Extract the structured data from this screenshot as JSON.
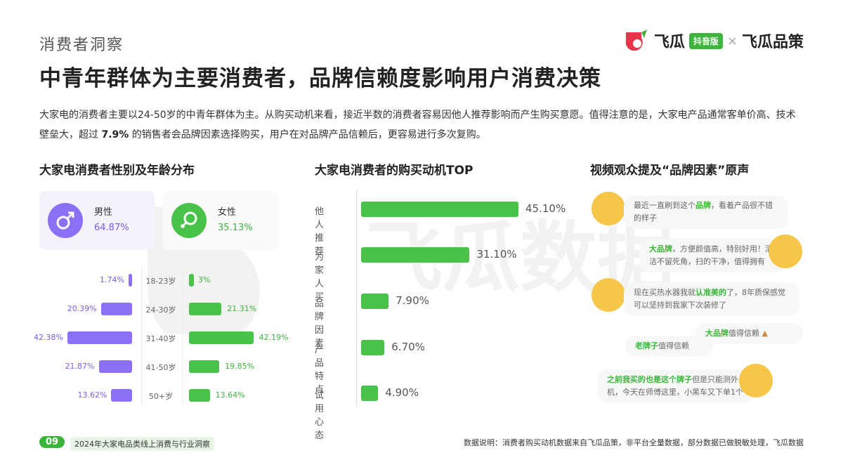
{
  "header": {
    "section_label": "消费者洞察",
    "title": "中青年群体为主要消费者，品牌信赖度影响用户消费决策",
    "brand_left": "飞瓜",
    "brand_tag": "抖音版",
    "brand_x": "×",
    "brand_right": "飞瓜品策"
  },
  "intro": {
    "part1": "大家电的消费者主要以24-50岁的中青年群体为主。从购买动机来看，接近半数的消费者容易因他人推荐影响而产生购买意愿。值得注意的是，大家电产品通常客单价高、技术壁垒大，超过 ",
    "highlight": "7.9%",
    "part2": " 的销售者会品牌因素选择购买，用户在对品牌产品信赖后，更容易进行多次复购。"
  },
  "section_titles": {
    "gender_age": "大家电消费者性别及年龄分布",
    "motivation": "大家电消费者的购买动机TOP",
    "voices": "视频观众提及“品牌因素”原声"
  },
  "gender": {
    "male_label": "男性",
    "male_pct": "64.87%",
    "female_label": "女性",
    "female_pct": "35.13%",
    "male_color": "#8b6ff5",
    "female_color": "#48c248"
  },
  "voices": [
    {
      "pre": "最近一直刷到这个",
      "bold": "品牌",
      "post": "，看着产品很不错的样子"
    },
    {
      "pre": "",
      "bold": "大品牌",
      "post": "，方便颜值高，特别好用！清洁不留死角，扫的干净，值得拥有"
    },
    {
      "pre": "现在买热水器我就",
      "bold": "认准美的",
      "post": "了，8年质保感觉可以坚持到我家下次装修了"
    },
    {
      "pre": "",
      "bold": "大品牌",
      "post": "值得信赖"
    },
    {
      "pre": "",
      "bold": "老牌子",
      "post": "值得信赖"
    },
    {
      "pre": "",
      "bold": "之前我买的也是这个牌子",
      "post": "但是只能测外机，今天在师傅这里，小黑车又下单1个"
    }
  ],
  "footer": {
    "page_num": "09",
    "report_name": "2024年大家电品类线上消费与行业洞察",
    "source": "数据说明：消费者购买动机数据来自飞瓜品策，非平台全量数据，部分数据已做脱敏处理，飞瓜数据"
  },
  "watermark": "飞瓜数据",
  "chart_data": [
    {
      "type": "bar",
      "title": "大家电消费者性别及年龄分布",
      "categories": [
        "18-23岁",
        "24-30岁",
        "31-40岁",
        "41-50岁",
        "50+岁"
      ],
      "series": [
        {
          "name": "男性",
          "values": [
            1.74,
            20.39,
            42.38,
            21.87,
            13.62
          ],
          "labels": [
            "1.74%",
            "20.39%",
            "42.38%",
            "21.87%",
            "13.62%"
          ]
        },
        {
          "name": "女性",
          "values": [
            3,
            21.31,
            42.19,
            19.85,
            13.64
          ],
          "labels": [
            "3%",
            "21.31%",
            "42.19%",
            "19.85%",
            "13.64%"
          ]
        }
      ]
    },
    {
      "type": "bar",
      "title": "大家电消费者的购买动机TOP",
      "categories": [
        "他人推荐",
        "为家人买",
        "品牌因素",
        "产品特点",
        "试用心态"
      ],
      "values": [
        45.1,
        31.1,
        7.9,
        6.7,
        4.9
      ],
      "labels": [
        "45.10%",
        "31.10%",
        "7.90%",
        "6.70%",
        "4.90%"
      ]
    }
  ]
}
